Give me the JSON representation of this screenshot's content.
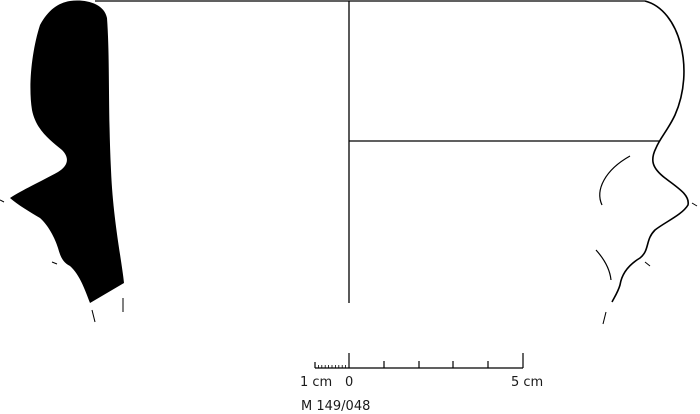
{
  "drawing": {
    "scale_bar": {
      "left_label": "1 cm",
      "zero_label": "0",
      "right_label": "5 cm"
    },
    "catalog_number": "M 149/048",
    "colors": {
      "ink": "#000000",
      "background": "#ffffff"
    }
  }
}
